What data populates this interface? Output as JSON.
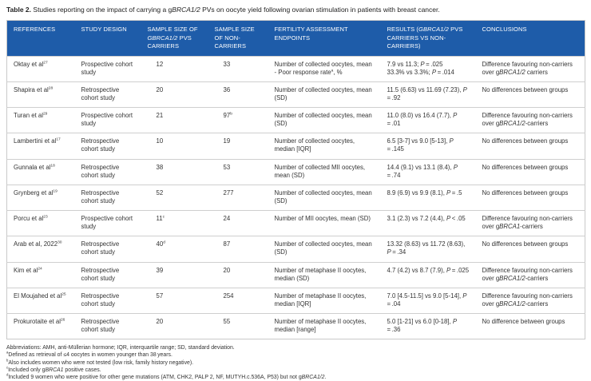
{
  "colors": {
    "header_bg": "#1e5ca9",
    "header_text": "#ffffff",
    "row_border": "#cfcfcf"
  },
  "title": {
    "label": "Table 2.",
    "text": "Studies reporting on the impact of carrying a g*BRCA1/2* PVs on oocyte yield following ovarian stimulation in patients with breast cancer."
  },
  "table": {
    "columns": [
      {
        "label": "REFERENCES"
      },
      {
        "label": "STUDY DESIGN"
      },
      {
        "label": "SAMPLE SIZE OF *GBRCA1/2* PVS CARRIERS"
      },
      {
        "label": "SAMPLE SIZE OF NON-CARRIERS"
      },
      {
        "label": "FERTILITY ASSESSMENT ENDPOINTS"
      },
      {
        "label": "RESULTS (*GBRCA1/2* PVS CARRIERS VS NON-CARRIERS)"
      },
      {
        "label": "CONCLUSIONS"
      }
    ],
    "rows": [
      {
        "reference": "Oktay et al^27^",
        "design": "Prospective cohort study",
        "carriers": "12",
        "noncarriers": "33",
        "endpoints": [
          "Number of collected oocytes, mean",
          "- Poor response rate^a^, %"
        ],
        "results": [
          "7.9 vs 11.3; *P* = .025",
          "33.3% vs 3.3%; *P* = .014"
        ],
        "conclusions": "Difference favouring non-carriers over g*BRCA1/2* carriers"
      },
      {
        "reference": "Shapira et al^28^",
        "design": "Retrospective cohort study",
        "carriers": "20",
        "noncarriers": "36",
        "endpoints": [
          "Number of collected oocytes, mean (SD)"
        ],
        "results": [
          "11.5 (6.63) vs 11.69 (7.23), *P* = .92"
        ],
        "conclusions": "No differences between groups"
      },
      {
        "reference": "Turan et al^29^",
        "design": "Prospective cohort study",
        "carriers": "21",
        "noncarriers": "97^b^",
        "endpoints": [
          "Number of collected oocytes, mean (SD)"
        ],
        "results": [
          "11.0 (8.0) vs 16.4 (7.7), *P* = .01"
        ],
        "conclusions": "Difference favouring non-carriers over g*BRCA1/2*-carriers"
      },
      {
        "reference": "Lambertini et al^17^",
        "design": "Retrospective cohort study",
        "carriers": "10",
        "noncarriers": "19",
        "endpoints": [
          "Number of collected oocytes, median [IQR]"
        ],
        "results": [
          "6.5 [3-7] vs 9.0 [5-13], *P* = .145"
        ],
        "conclusions": "No differences between groups"
      },
      {
        "reference": "Gunnala et al^18^",
        "design": "Retrospective cohort study",
        "carriers": "38",
        "noncarriers": "53",
        "endpoints": [
          "Number of collected MII oocytes, mean (SD)"
        ],
        "results": [
          "14.4 (9.1) vs 13.1 (8.4), *P* = .74"
        ],
        "conclusions": "No differences between groups"
      },
      {
        "reference": "Grynberg et al^19^",
        "design": "Retrospective cohort study",
        "carriers": "52",
        "noncarriers": "277",
        "endpoints": [
          "Number of collected oocytes, mean (SD)"
        ],
        "results": [
          "8.9 (6.9) vs 9.9 (8.1), *P* = .5"
        ],
        "conclusions": "No differences between groups"
      },
      {
        "reference": "Porcu et al^23^",
        "design": "Prospective cohort study",
        "carriers": "11^c^",
        "noncarriers": "24",
        "endpoints": [
          "Number of MII oocytes, mean (SD)"
        ],
        "results": [
          "3.1 (2.3) vs 7.2 (4.4), *P* < .05"
        ],
        "conclusions": "Difference favouring non-carriers over g*BRCA1*-carriers"
      },
      {
        "reference": "Arab et al, 2022^30^",
        "design": "Retrospective cohort study",
        "carriers": "40^d^",
        "noncarriers": "87",
        "endpoints": [
          "Number of collected oocytes, mean (SD)"
        ],
        "results": [
          "13.32 (8.63) vs 11.72 (8.63), *P* = .34"
        ],
        "conclusions": "No differences between groups"
      },
      {
        "reference": "Kim et al^24^",
        "design": "Retrospective cohort study",
        "carriers": "39",
        "noncarriers": "20",
        "endpoints": [
          "Number of metaphase II oocytes, median (SD)"
        ],
        "results": [
          "4.7 (4.2) vs 8.7 (7.9), *P* = .025"
        ],
        "conclusions": "Difference favouring non-carriers over g*BRCA1/2*-carriers"
      },
      {
        "reference": "El Moujahed et al^25^",
        "design": "Retrospective cohort study",
        "carriers": "57",
        "noncarriers": "254",
        "endpoints": [
          "Number of metaphase II oocytes, median [IQR]"
        ],
        "results": [
          "7.0 [4.5-11.5] vs 9.0 [5-14], *P* = .04"
        ],
        "conclusions": "Difference favouring non-carriers over g*BRCA1/2*-carriers"
      },
      {
        "reference": "Prokurotaite et al^26^",
        "design": "Retrospective cohort study",
        "carriers": "20",
        "noncarriers": "55",
        "endpoints": [
          "Number of metaphase II oocytes, median [range]"
        ],
        "results": [
          "5.0 [1-21] vs 6.0 [0-18], *P* = .36"
        ],
        "conclusions": "No difference between groups"
      }
    ]
  },
  "footnotes": [
    "Abbreviations: AMH, anti-Müllerian hormone; IQR, interquartile range; SD, standard deviation.",
    "^a^Defined as retrieval of ≤4 oocytes in women younger than 38 years.",
    "^b^Also includes women who were not tested (low risk, family history negative).",
    "^c^Included only g*BRCA1* positive cases.",
    "^d^Included 9 women who were positive for other gene mutations (ATM, CHK2, PALP 2, NF, MUTYH.c.536A, P53) but not g*BRCA1/2*."
  ]
}
